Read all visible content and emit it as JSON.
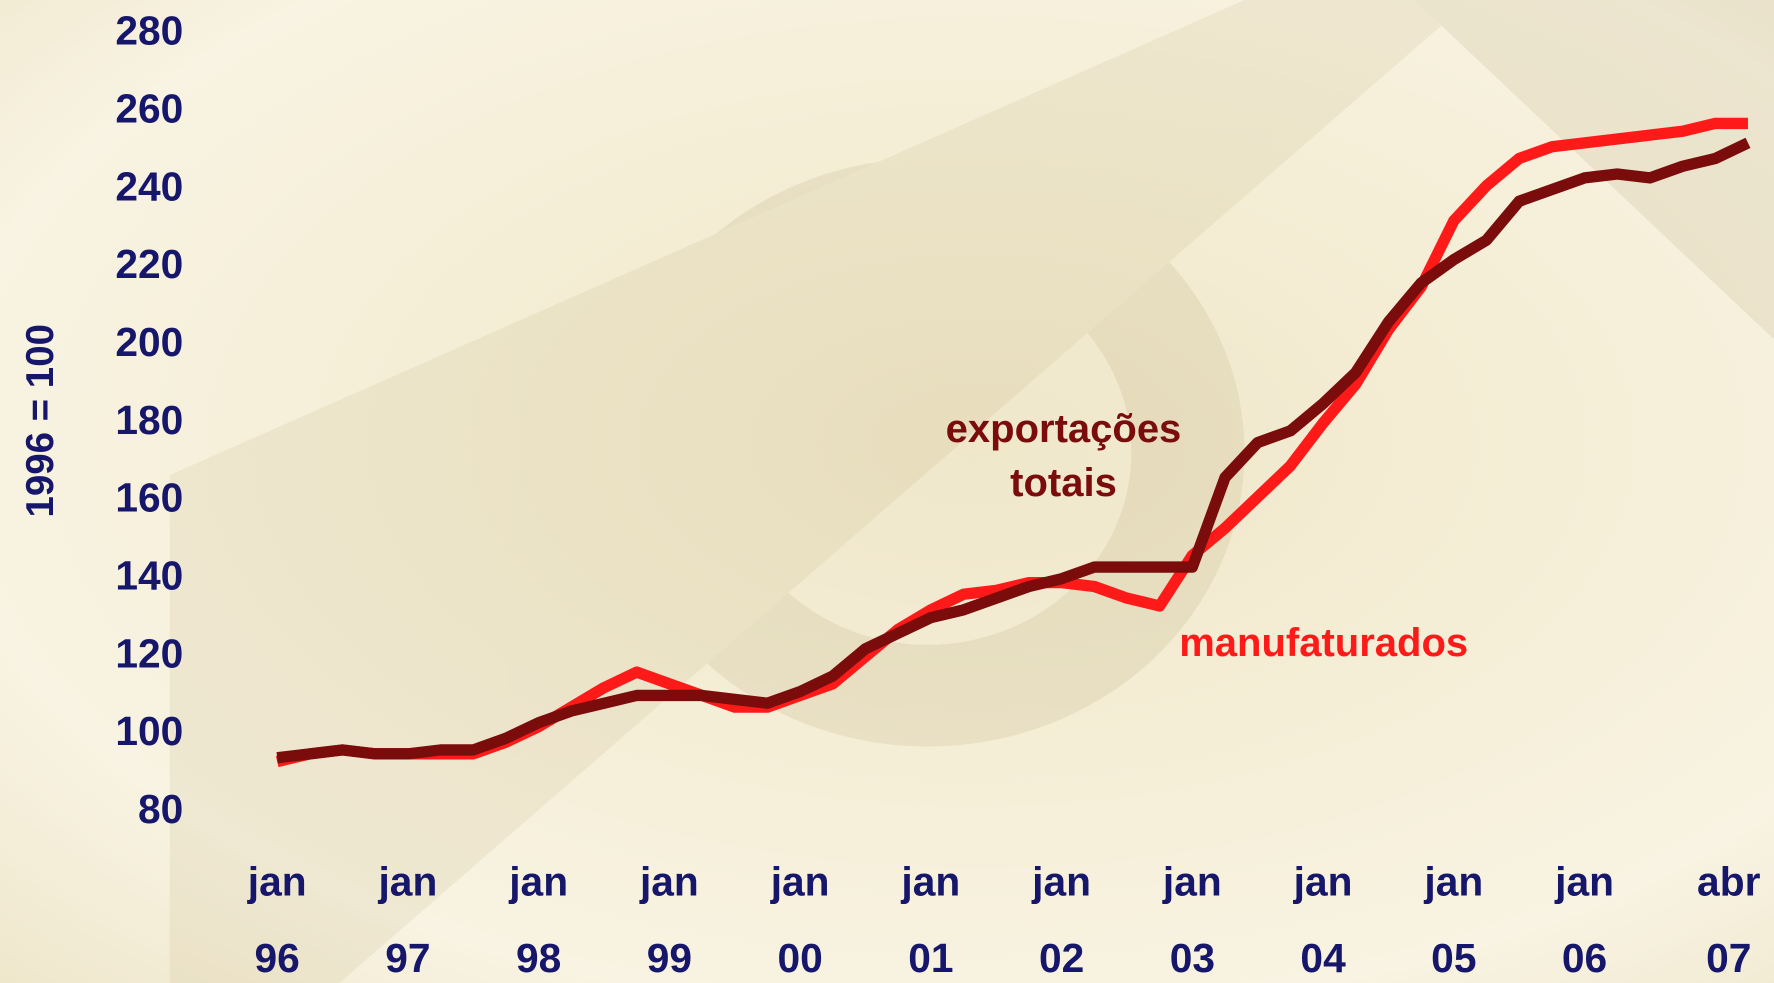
{
  "chart_data": {
    "type": "line",
    "y_label": "1996 = 100",
    "categories": [
      [
        "jan",
        "96"
      ],
      null,
      null,
      null,
      [
        "jan",
        "97"
      ],
      null,
      null,
      null,
      [
        "jan",
        "98"
      ],
      null,
      null,
      null,
      [
        "jan",
        "99"
      ],
      null,
      null,
      null,
      [
        "jan",
        "00"
      ],
      null,
      null,
      null,
      [
        "jan",
        "01"
      ],
      null,
      null,
      null,
      [
        "jan",
        "02"
      ],
      null,
      null,
      null,
      [
        "jan",
        "03"
      ],
      null,
      null,
      null,
      [
        "jan",
        "04"
      ],
      null,
      null,
      null,
      [
        "jan",
        "05"
      ],
      null,
      null,
      null,
      [
        "jan",
        "06"
      ],
      null,
      null,
      null,
      null,
      [
        "abr",
        "07"
      ]
    ],
    "series": [
      {
        "name": "exportações totais",
        "color": "#7a0c0c",
        "values": [
          94,
          95,
          96,
          95,
          95,
          96,
          96,
          99,
          103,
          106,
          108,
          110,
          110,
          110,
          109,
          108,
          111,
          115,
          122,
          126,
          130,
          132,
          135,
          138,
          140,
          143,
          143,
          143,
          143,
          166,
          175,
          178,
          185,
          193,
          206,
          216,
          222,
          227,
          237,
          240,
          243,
          244,
          243,
          246,
          248,
          252
        ]
      },
      {
        "name": "manufaturados",
        "color": "#ff1a1a",
        "values": [
          93,
          95,
          96,
          95,
          95,
          95,
          95,
          98,
          102,
          107,
          112,
          116,
          113,
          110,
          107,
          107,
          110,
          113,
          120,
          127,
          132,
          136,
          137,
          139,
          139,
          138,
          135,
          133,
          146,
          153,
          161,
          169,
          180,
          190,
          204,
          215,
          232,
          241,
          248,
          251,
          252,
          253,
          254,
          255,
          257,
          257
        ]
      }
    ],
    "ylim": [
      80,
      280
    ],
    "yticks": [
      80,
      100,
      120,
      140,
      160,
      180,
      200,
      220,
      240,
      260,
      280
    ],
    "grid": false
  }
}
